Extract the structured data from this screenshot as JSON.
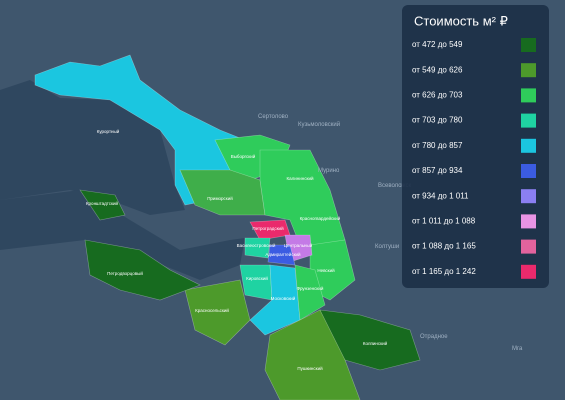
{
  "legend": {
    "title": "Стоимость м² ₽",
    "items": [
      {
        "label": "от 472 до 549",
        "color": "#176b1f"
      },
      {
        "label": "от 549 до 626",
        "color": "#4d9a2b"
      },
      {
        "label": "от 626 до 703",
        "color": "#2fcc5b"
      },
      {
        "label": "от 703 до 780",
        "color": "#1fd3a2"
      },
      {
        "label": "от 780 до 857",
        "color": "#1bc6e0"
      },
      {
        "label": "от 857 до 934",
        "color": "#3b5ce2"
      },
      {
        "label": "от 934 до 1 011",
        "color": "#8b7ff2"
      },
      {
        "label": "от 1 011 до 1 088",
        "color": "#e894e4"
      },
      {
        "label": "от 1 088 до 1 165",
        "color": "#e2639d"
      },
      {
        "label": "от 1 165 до 1 242",
        "color": "#ea2a6c"
      }
    ]
  },
  "districts": [
    "Курортный",
    "Выборгский",
    "Приморский",
    "Калининский",
    "Красногвардейский",
    "Невский",
    "Петроградский",
    "Центральный",
    "Адмиралтейский",
    "Василеостровский",
    "Кировский",
    "Московский",
    "Фрунзенский",
    "Красносельский",
    "Петродворцовый",
    "Кронштадтский",
    "Колпинский",
    "Пушкинский"
  ],
  "places": [
    "Сертолово",
    "Кузьмоловский",
    "Мурино",
    "Всеволожск",
    "Колтуши",
    "Отрадное",
    "Мга"
  ]
}
